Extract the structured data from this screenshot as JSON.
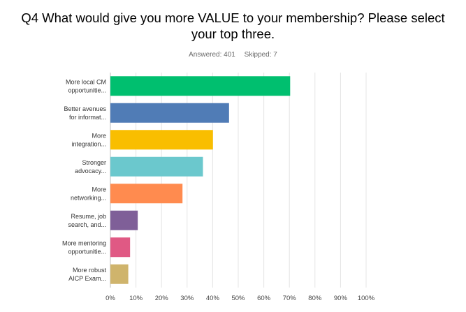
{
  "survey": {
    "title_line1": "Q4 What would give you more VALUE to your membership?  Please select",
    "title_line2": "your top three.",
    "answered": "Answered: 401",
    "skipped": "Skipped: 7"
  },
  "chart_data": {
    "type": "bar",
    "orientation": "horizontal",
    "categories": [
      [
        "More local CM",
        "opportunitie..."
      ],
      [
        "Better avenues",
        "for informat..."
      ],
      [
        "More",
        "integration..."
      ],
      [
        "Stronger",
        "advocacy..."
      ],
      [
        "More",
        "networking..."
      ],
      [
        "Resume, job",
        "search, and..."
      ],
      [
        "More mentoring",
        "opportunitie..."
      ],
      [
        "More robust",
        "AICP Exam..."
      ]
    ],
    "values": [
      70.3,
      46.4,
      40.1,
      36.2,
      28.2,
      10.7,
      7.7,
      7.0
    ],
    "colors": [
      "#00bf6f",
      "#507cb6",
      "#f9be00",
      "#6bc8cd",
      "#ff8b4f",
      "#7f5f98",
      "#e05984",
      "#cfb46c"
    ],
    "xlim": [
      0,
      100
    ],
    "x_tick_labels": [
      "0%",
      "10%",
      "20%",
      "30%",
      "40%",
      "50%",
      "60%",
      "70%",
      "80%",
      "90%",
      "100%"
    ],
    "grid": true,
    "xlabel": "",
    "ylabel": ""
  }
}
